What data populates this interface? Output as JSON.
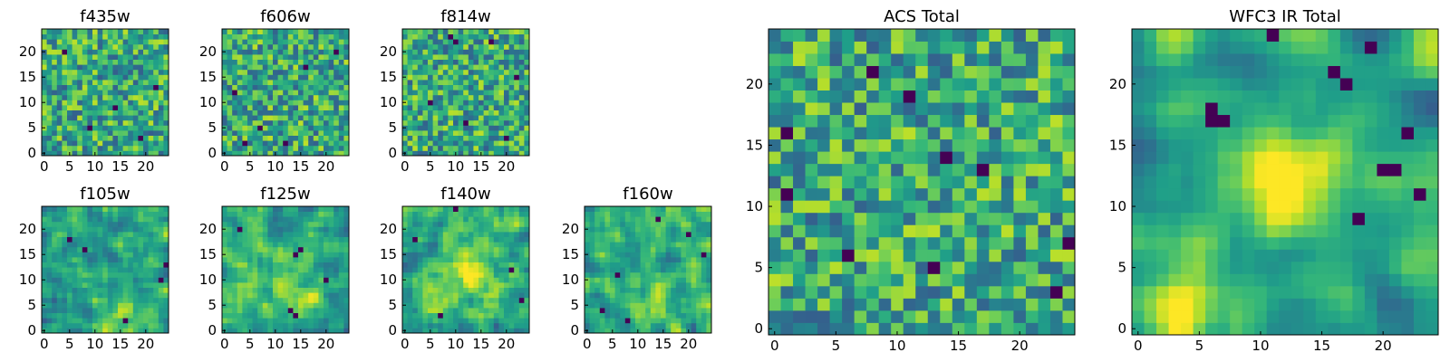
{
  "figure_title": "",
  "chart_data": [
    {
      "type": "heatmap",
      "title": "f435w",
      "grid": [
        25,
        25
      ],
      "seed": 11,
      "smooth": 0,
      "blobs": [],
      "dark_cells": [
        [
          4,
          20
        ],
        [
          14,
          9
        ],
        [
          22,
          13
        ],
        [
          9,
          5
        ],
        [
          19,
          3
        ]
      ],
      "xticks": [
        "0",
        "5",
        "10",
        "15",
        "20"
      ],
      "yticks": [
        "0",
        "5",
        "10",
        "15",
        "20"
      ],
      "xlim": [
        0,
        24
      ],
      "ylim": [
        0,
        24
      ],
      "colormap": "viridis"
    },
    {
      "type": "heatmap",
      "title": "f606w",
      "grid": [
        25,
        25
      ],
      "seed": 23,
      "smooth": 0,
      "blobs": [],
      "dark_cells": [
        [
          2,
          12
        ],
        [
          7,
          5
        ],
        [
          16,
          17
        ],
        [
          22,
          20
        ],
        [
          4,
          2
        ],
        [
          12,
          2
        ]
      ],
      "xticks": [
        "0",
        "5",
        "10",
        "15",
        "20"
      ],
      "yticks": [
        "0",
        "5",
        "10",
        "15",
        "20"
      ],
      "xlim": [
        0,
        24
      ],
      "ylim": [
        0,
        24
      ],
      "colormap": "viridis"
    },
    {
      "type": "heatmap",
      "title": "f814w",
      "grid": [
        25,
        25
      ],
      "seed": 37,
      "smooth": 0,
      "blobs": [],
      "dark_cells": [
        [
          9,
          23
        ],
        [
          10,
          22
        ],
        [
          17,
          22
        ],
        [
          5,
          10
        ],
        [
          12,
          6
        ],
        [
          22,
          15
        ],
        [
          20,
          3
        ]
      ],
      "xticks": [
        "0",
        "5",
        "10",
        "15",
        "20"
      ],
      "yticks": [
        "0",
        "5",
        "10",
        "15",
        "20"
      ],
      "xlim": [
        0,
        24
      ],
      "ylim": [
        0,
        24
      ],
      "colormap": "viridis"
    },
    {
      "type": "heatmap",
      "title": "f105w",
      "grid": [
        25,
        25
      ],
      "seed": 41,
      "smooth": 1,
      "blobs": [
        [
          15,
          5,
          0.8,
          3
        ]
      ],
      "dark_cells": [
        [
          23,
          10
        ],
        [
          24,
          13
        ],
        [
          8,
          16
        ],
        [
          16,
          2
        ],
        [
          5,
          18
        ]
      ],
      "xticks": [
        "0",
        "5",
        "10",
        "15",
        "20"
      ],
      "yticks": [
        "0",
        "5",
        "10",
        "15",
        "20"
      ],
      "xlim": [
        0,
        24
      ],
      "ylim": [
        0,
        24
      ],
      "colormap": "viridis"
    },
    {
      "type": "heatmap",
      "title": "f125w",
      "grid": [
        25,
        25
      ],
      "seed": 53,
      "smooth": 1,
      "blobs": [
        [
          13,
          8,
          0.7,
          3
        ]
      ],
      "dark_cells": [
        [
          15,
          16
        ],
        [
          14,
          15
        ],
        [
          13,
          4
        ],
        [
          14,
          3
        ],
        [
          3,
          20
        ],
        [
          20,
          10
        ]
      ],
      "xticks": [
        "0",
        "5",
        "10",
        "15",
        "20"
      ],
      "yticks": [
        "0",
        "5",
        "10",
        "15",
        "20"
      ],
      "xlim": [
        0,
        24
      ],
      "ylim": [
        0,
        24
      ],
      "colormap": "viridis"
    },
    {
      "type": "heatmap",
      "title": "f140w",
      "grid": [
        25,
        25
      ],
      "seed": 67,
      "smooth": 1,
      "blobs": [
        [
          12,
          12,
          1.0,
          4
        ]
      ],
      "dark_cells": [
        [
          10,
          24
        ],
        [
          2,
          18
        ],
        [
          21,
          12
        ],
        [
          7,
          3
        ],
        [
          23,
          6
        ]
      ],
      "xticks": [
        "0",
        "5",
        "10",
        "15",
        "20"
      ],
      "yticks": [
        "0",
        "5",
        "10",
        "15",
        "20"
      ],
      "xlim": [
        0,
        24
      ],
      "ylim": [
        0,
        24
      ],
      "colormap": "viridis"
    },
    {
      "type": "heatmap",
      "title": "f160w",
      "grid": [
        25,
        25
      ],
      "seed": 79,
      "smooth": 1,
      "blobs": [
        [
          13,
          5,
          0.7,
          3
        ]
      ],
      "dark_cells": [
        [
          6,
          11
        ],
        [
          20,
          19
        ],
        [
          3,
          4
        ],
        [
          14,
          22
        ],
        [
          23,
          15
        ],
        [
          8,
          2
        ]
      ],
      "xticks": [
        "0",
        "5",
        "10",
        "15",
        "20"
      ],
      "yticks": [
        "0",
        "5",
        "10",
        "15",
        "20"
      ],
      "xlim": [
        0,
        24
      ],
      "ylim": [
        0,
        24
      ],
      "colormap": "viridis"
    },
    {
      "type": "heatmap",
      "title": "ACS Total",
      "grid": [
        25,
        25
      ],
      "seed": 97,
      "smooth": 0,
      "blobs": [],
      "dark_cells": [
        [
          8,
          21
        ],
        [
          1,
          16
        ],
        [
          1,
          11
        ],
        [
          14,
          14
        ],
        [
          17,
          13
        ],
        [
          6,
          6
        ],
        [
          13,
          5
        ],
        [
          24,
          7
        ],
        [
          23,
          3
        ],
        [
          11,
          19
        ]
      ],
      "xticks": [
        "0",
        "5",
        "10",
        "15",
        "20"
      ],
      "yticks": [
        "0",
        "5",
        "10",
        "15",
        "20"
      ],
      "xlim": [
        0,
        24
      ],
      "ylim": [
        0,
        24
      ],
      "colormap": "viridis"
    },
    {
      "type": "heatmap",
      "title": "WFC3 IR Total",
      "grid": [
        25,
        25
      ],
      "seed": 113,
      "smooth": 2,
      "blobs": [
        [
          12,
          12,
          1.4,
          3
        ],
        [
          4,
          2,
          1.0,
          3
        ]
      ],
      "dark_cells": [
        [
          6,
          17
        ],
        [
          7,
          17
        ],
        [
          6,
          18
        ],
        [
          16,
          21
        ],
        [
          17,
          20
        ],
        [
          22,
          16
        ],
        [
          21,
          13
        ],
        [
          20,
          13
        ],
        [
          23,
          11
        ],
        [
          11,
          24
        ],
        [
          19,
          23
        ],
        [
          18,
          9
        ]
      ],
      "xticks": [
        "0",
        "5",
        "10",
        "15",
        "20"
      ],
      "yticks": [
        "0",
        "5",
        "10",
        "15",
        "20"
      ],
      "xlim": [
        0,
        24
      ],
      "ylim": [
        0,
        24
      ],
      "colormap": "viridis"
    }
  ]
}
